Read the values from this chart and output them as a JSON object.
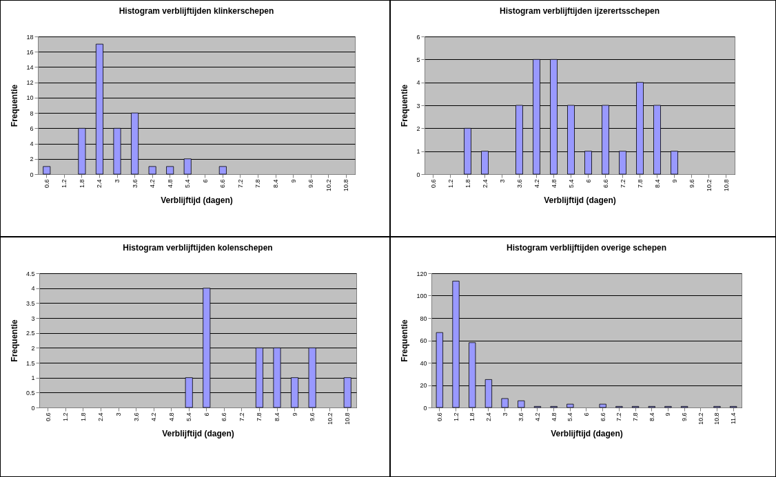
{
  "chart_data": [
    {
      "type": "bar",
      "title": "Histogram verblijftijden klinkerschepen",
      "xlabel": "Verblijftijd (dagen)",
      "ylabel": "Frequentie",
      "categories": [
        "0.6",
        "1.2",
        "1.8",
        "2.4",
        "3",
        "3.6",
        "4.2",
        "4.8",
        "5.4",
        "6",
        "6.6",
        "7.2",
        "7.8",
        "8.4",
        "9",
        "9.6",
        "10.2",
        "10.8"
      ],
      "values": [
        1,
        0,
        6,
        17,
        6,
        8,
        1,
        1,
        2,
        0,
        1,
        0,
        0,
        0,
        0,
        0,
        0,
        0
      ],
      "color": "#9999ff",
      "ylim": [
        0,
        18
      ],
      "yticks": [
        0,
        2,
        4,
        6,
        8,
        10,
        12,
        14,
        16,
        18
      ],
      "grid": "y"
    },
    {
      "type": "bar",
      "title": "Histogram verblijftijden ijzerertsschepen",
      "xlabel": "Verblijftijd (dagen)",
      "ylabel": "Frequentie",
      "categories": [
        "0.6",
        "1.2",
        "1.8",
        "2.4",
        "3",
        "3.6",
        "4.2",
        "4.8",
        "5.4",
        "6",
        "6.6",
        "7.2",
        "7.8",
        "8.4",
        "9",
        "9.6",
        "10.2",
        "10.8"
      ],
      "values": [
        0,
        0,
        2,
        1,
        0,
        3,
        5,
        5,
        3,
        1,
        3,
        1,
        4,
        3,
        1,
        0,
        0,
        0
      ],
      "color": "#9999ff",
      "ylim": [
        0,
        6
      ],
      "yticks": [
        0,
        1,
        2,
        3,
        4,
        5,
        6
      ],
      "grid": "y"
    },
    {
      "type": "bar",
      "title": "Histogram verblijftijden kolenschepen",
      "xlabel": "Verblijftijd (dagen)",
      "ylabel": "Frequentie",
      "categories": [
        "0.6",
        "1.2",
        "1.8",
        "2.4",
        "3",
        "3.6",
        "4.2",
        "4.8",
        "5.4",
        "6",
        "6.6",
        "7.2",
        "7.8",
        "8.4",
        "9",
        "9.6",
        "10.2",
        "10.8"
      ],
      "values": [
        0,
        0,
        0,
        0,
        0,
        0,
        0,
        0,
        1,
        4,
        0,
        0,
        2,
        2,
        1,
        2,
        0,
        1
      ],
      "color": "#9999ff",
      "ylim": [
        0,
        4.5
      ],
      "yticks": [
        0,
        0.5,
        1,
        1.5,
        2,
        2.5,
        3,
        3.5,
        4,
        4.5
      ],
      "grid": "y"
    },
    {
      "type": "bar",
      "title": "Histogram verblijftijden overige schepen",
      "xlabel": "Verblijftijd (dagen)",
      "ylabel": "Frequentie",
      "categories": [
        "0.6",
        "1.2",
        "1.8",
        "2.4",
        "3",
        "3.6",
        "4.2",
        "4.8",
        "5.4",
        "6",
        "6.6",
        "7.2",
        "7.8",
        "8.4",
        "9",
        "9.6",
        "10.2",
        "10.8",
        "11.4"
      ],
      "values": [
        67,
        113,
        58,
        25,
        8,
        6,
        1,
        1,
        3,
        0,
        3,
        1,
        1,
        1,
        1,
        1,
        0,
        1,
        1
      ],
      "color": "#9999ff",
      "ylim": [
        0,
        120
      ],
      "yticks": [
        0,
        20,
        40,
        60,
        80,
        100,
        120
      ],
      "grid": "y"
    }
  ]
}
